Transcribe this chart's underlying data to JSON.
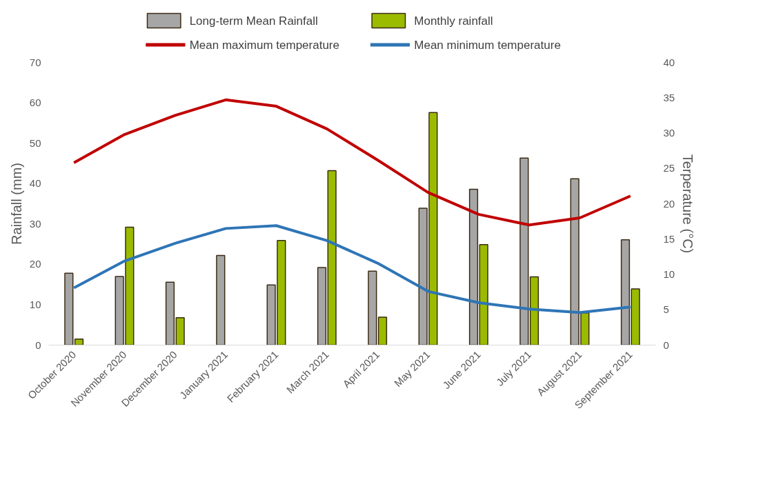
{
  "chart_data": {
    "type": "bar",
    "ylabel": "Rainfall (mm)",
    "y2label": "Terperature (°C)",
    "categories": [
      "October 2020",
      "November 2020",
      "December 2020",
      "January 2021",
      "February 2021",
      "March 2021",
      "April 2021",
      "May 2021",
      "June 2021",
      "July 2021",
      "August 2021",
      "September 2021"
    ],
    "ylim": [
      0,
      70
    ],
    "yticks": [
      0,
      10,
      20,
      30,
      40,
      50,
      60,
      70
    ],
    "y2lim": [
      0,
      40
    ],
    "y2ticks": [
      0,
      5,
      10,
      15,
      20,
      25,
      30,
      35,
      40
    ],
    "legend": "top",
    "line_style": "solid",
    "series": [
      {
        "name": "Long-term Mean Rainfall",
        "color": "#a6a6a6",
        "values": [
          17.8,
          17,
          15.6,
          22.2,
          14.9,
          19.2,
          18.3,
          33.9,
          38.6,
          46.3,
          41.2,
          26.1
        ]
      },
      {
        "name": "Monthly rainfall",
        "color": "#9bbb00",
        "values": [
          1.5,
          29.2,
          6.8,
          0,
          25.9,
          43.2,
          6.9,
          57.6,
          24.9,
          16.9,
          8,
          13.9
        ]
      },
      {
        "name": "Mean maximum temperature",
        "type": "line",
        "axis": "y2",
        "color": "#c00000",
        "values": [
          25.8,
          29.8,
          32.5,
          34.7,
          33.8,
          30.6,
          26.2,
          21.6,
          18.5,
          17.0,
          18.0,
          21.1
        ]
      },
      {
        "name": "Mean minimum temperature",
        "type": "line",
        "axis": "y2",
        "color": "#2e75b6",
        "values": [
          8.1,
          11.9,
          14.4,
          16.5,
          16.9,
          14.8,
          11.6,
          7.6,
          6.0,
          5.1,
          4.6,
          5.4
        ]
      }
    ]
  }
}
